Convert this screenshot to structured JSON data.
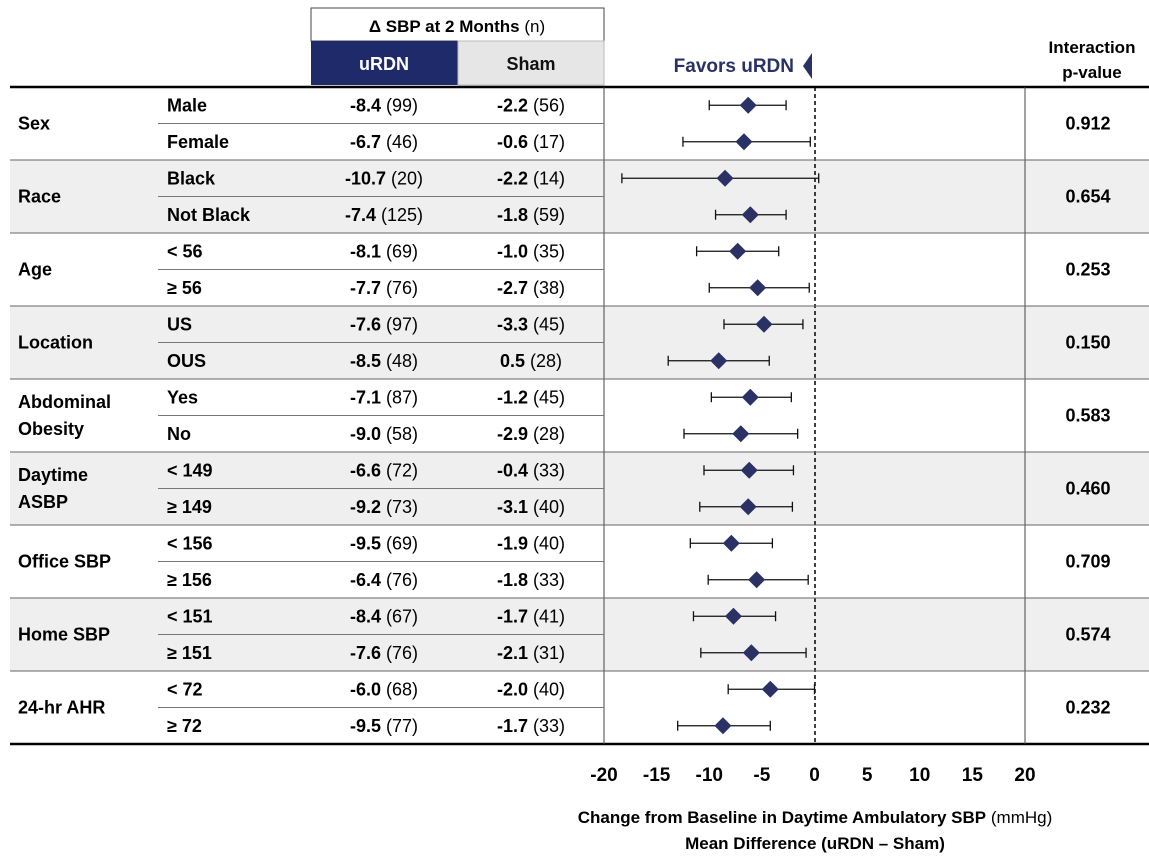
{
  "header": {
    "group_title_bold": "Δ SBP at 2 Months",
    "group_title_n": "(n)",
    "col_urdn": "uRDN",
    "col_sham": "Sham",
    "favors": "Favors uRDN",
    "pvalue_line1": "Interaction",
    "pvalue_line2": "p-value"
  },
  "colors": {
    "urdn_header_bg": "#1f2a6b",
    "sham_header_bg": "#e6e6e6",
    "marker": "#2a3165",
    "band": "#efefef",
    "favors_text": "#2a3165"
  },
  "chart_data": {
    "type": "forest",
    "xlim": [
      -20,
      20
    ],
    "xticks": [
      -20,
      -15,
      -10,
      -5,
      0,
      5,
      10,
      15,
      20
    ],
    "reference_line": 0,
    "xlabel_bold": "Change from Baseline in Daytime Ambulatory SBP",
    "xlabel_unit": "(mmHg)",
    "xlabel_line2": "Mean Difference (uRDN – Sham)",
    "groups": [
      {
        "name": [
          "Sex"
        ],
        "p": "0.912",
        "rows": [
          {
            "label": "Male",
            "urdn": "-8.4",
            "urdn_n": "(99)",
            "sham": "-2.2",
            "sham_n": "(56)",
            "est": -6.3,
            "lo": -10.0,
            "hi": -2.7
          },
          {
            "label": "Female",
            "urdn": "-6.7",
            "urdn_n": "(46)",
            "sham": "-0.6",
            "sham_n": "(17)",
            "est": -6.7,
            "lo": -12.5,
            "hi": -0.4
          }
        ]
      },
      {
        "name": [
          "Race"
        ],
        "p": "0.654",
        "rows": [
          {
            "label": "Black",
            "urdn": "-10.7",
            "urdn_n": "(20)",
            "sham": "-2.2",
            "sham_n": "(14)",
            "est": -8.5,
            "lo": -18.3,
            "hi": 0.4
          },
          {
            "label": "Not Black",
            "urdn": "-7.4",
            "urdn_n": "(125)",
            "sham": "-1.8",
            "sham_n": "(59)",
            "est": -6.1,
            "lo": -9.4,
            "hi": -2.7
          }
        ]
      },
      {
        "name": [
          "Age"
        ],
        "p": "0.253",
        "rows": [
          {
            "label": "< 56",
            "urdn": "-8.1",
            "urdn_n": "(69)",
            "sham": "-1.0",
            "sham_n": "(35)",
            "est": -7.3,
            "lo": -11.2,
            "hi": -3.4
          },
          {
            "label": "≥ 56",
            "urdn": "-7.7",
            "urdn_n": "(76)",
            "sham": "-2.7",
            "sham_n": "(38)",
            "est": -5.4,
            "lo": -10.0,
            "hi": -0.5
          }
        ]
      },
      {
        "name": [
          "Location"
        ],
        "p": "0.150",
        "rows": [
          {
            "label": "US",
            "urdn": "-7.6",
            "urdn_n": "(97)",
            "sham": "-3.3",
            "sham_n": "(45)",
            "est": -4.8,
            "lo": -8.6,
            "hi": -1.1
          },
          {
            "label": "OUS",
            "urdn": "-8.5",
            "urdn_n": "(48)",
            "sham": "0.5",
            "sham_n": "(28)",
            "est": -9.1,
            "lo": -13.9,
            "hi": -4.3
          }
        ]
      },
      {
        "name": [
          "Abdominal",
          "Obesity"
        ],
        "p": "0.583",
        "rows": [
          {
            "label": "Yes",
            "urdn": "-7.1",
            "urdn_n": "(87)",
            "sham": "-1.2",
            "sham_n": "(45)",
            "est": -6.1,
            "lo": -9.8,
            "hi": -2.2
          },
          {
            "label": "No",
            "urdn": "-9.0",
            "urdn_n": "(58)",
            "sham": "-2.9",
            "sham_n": "(28)",
            "est": -7.0,
            "lo": -12.4,
            "hi": -1.6
          }
        ]
      },
      {
        "name": [
          "Daytime",
          "ASBP"
        ],
        "p": "0.460",
        "rows": [
          {
            "label": "< 149",
            "urdn": "-6.6",
            "urdn_n": "(72)",
            "sham": "-0.4",
            "sham_n": "(33)",
            "est": -6.2,
            "lo": -10.5,
            "hi": -2.0
          },
          {
            "label": "≥ 149",
            "urdn": "-9.2",
            "urdn_n": "(73)",
            "sham": "-3.1",
            "sham_n": "(40)",
            "est": -6.3,
            "lo": -10.9,
            "hi": -2.1
          }
        ]
      },
      {
        "name": [
          "Office SBP"
        ],
        "p": "0.709",
        "rows": [
          {
            "label": "< 156",
            "urdn": "-9.5",
            "urdn_n": "(69)",
            "sham": "-1.9",
            "sham_n": "(40)",
            "est": -7.9,
            "lo": -11.8,
            "hi": -4.0
          },
          {
            "label": "≥ 156",
            "urdn": "-6.4",
            "urdn_n": "(76)",
            "sham": "-1.8",
            "sham_n": "(33)",
            "est": -5.5,
            "lo": -10.1,
            "hi": -0.6
          }
        ]
      },
      {
        "name": [
          "Home SBP"
        ],
        "p": "0.574",
        "rows": [
          {
            "label": "< 151",
            "urdn": "-8.4",
            "urdn_n": "(67)",
            "sham": "-1.7",
            "sham_n": "(41)",
            "est": -7.7,
            "lo": -11.5,
            "hi": -3.7
          },
          {
            "label": "≥ 151",
            "urdn": "-7.6",
            "urdn_n": "(76)",
            "sham": "-2.1",
            "sham_n": "(31)",
            "est": -6.0,
            "lo": -10.8,
            "hi": -0.8
          }
        ]
      },
      {
        "name": [
          "24-hr AHR"
        ],
        "p": "0.232",
        "rows": [
          {
            "label": "< 72",
            "urdn": "-6.0",
            "urdn_n": "(68)",
            "sham": "-2.0",
            "sham_n": "(40)",
            "est": -4.2,
            "lo": -8.2,
            "hi": 0.0
          },
          {
            "label": "≥ 72",
            "urdn": "-9.5",
            "urdn_n": "(77)",
            "sham": "-1.7",
            "sham_n": "(33)",
            "est": -8.7,
            "lo": -13.0,
            "hi": -4.2
          }
        ]
      }
    ]
  }
}
